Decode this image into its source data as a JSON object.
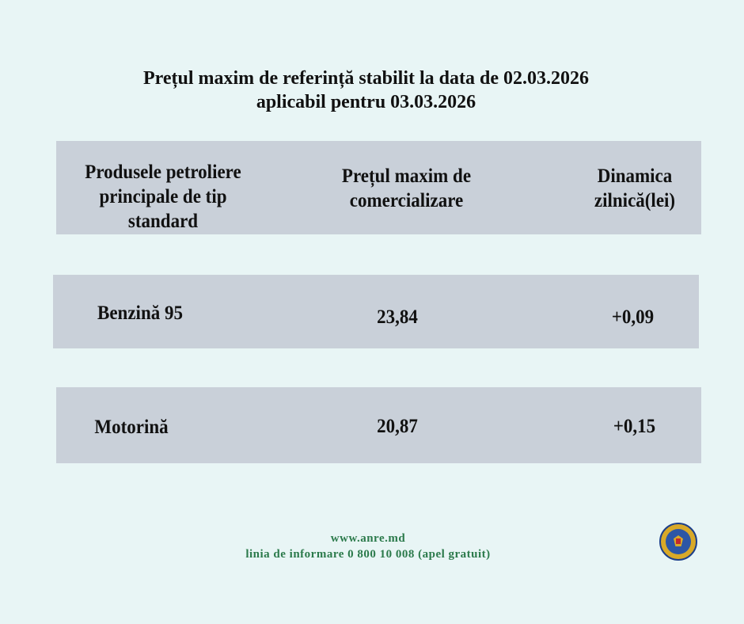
{
  "title": {
    "line1": "Prețul maxim de referință stabilit la data de 02.03.2026",
    "line2": "aplicabil pentru 03.03.2026"
  },
  "table": {
    "headers": [
      "Produsele petroliere principale de tip standard",
      "Prețul maxim de comercializare",
      "Dinamica zilnică(lei)"
    ],
    "rows": [
      {
        "product": "Benzină 95",
        "price": "23,84",
        "change": "+0,09"
      },
      {
        "product": "Motorină",
        "price": "20,87",
        "change": "+0,15"
      }
    ]
  },
  "footer": {
    "website": "www.anre.md",
    "hotline": "linia de informare 0 800 10 008 (apel gratuit)"
  },
  "logo": {
    "icon": "moldova-coat-of-arms-seal"
  },
  "colors": {
    "background": "#e8f5f5",
    "bar": "#c9d0d9",
    "footer_text": "#2b7a4b"
  }
}
